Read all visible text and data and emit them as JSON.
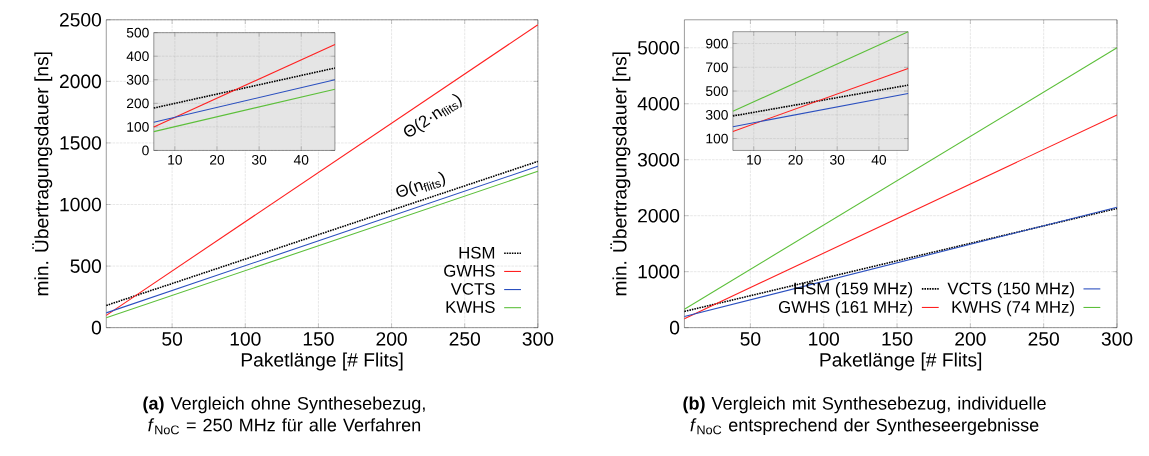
{
  "chart_data": [
    {
      "type": "line",
      "xlabel": "Paketlänge [# Flits]",
      "ylabel": "min. Übertragungsdauer [ns]",
      "xlim": [
        5,
        300
      ],
      "ylim": [
        0,
        2500
      ],
      "xticks": [
        50,
        100,
        150,
        200,
        250,
        300
      ],
      "yticks": [
        0,
        500,
        1000,
        1500,
        2000,
        2500
      ],
      "grid": true,
      "legend": "bottom right",
      "annotations": [
        "Θ(2·n$_{flits}$)",
        "Θ(n$_{flits}$)",
        "**(a)** Vergleich ohne Synthesebezug, *f*$_{NoC}$ = 250 MHz für alle Verfahren"
      ],
      "series": [
        {
          "name": "HSM",
          "color": "#000000",
          "line_style": "dotted",
          "x": [
            5,
            300
          ],
          "values": [
            180,
            1350
          ]
        },
        {
          "name": "GWHS",
          "color": "#ff2020",
          "x": [
            5,
            300
          ],
          "values": [
            100,
            2460
          ]
        },
        {
          "name": "VCTS",
          "color": "#2a4fbf",
          "x": [
            5,
            300
          ],
          "values": [
            120,
            1310
          ]
        },
        {
          "name": "KWHS",
          "color": "#5cbf3a",
          "x": [
            5,
            300
          ],
          "values": [
            80,
            1270
          ]
        }
      ]
    },
    {
      "type": "line",
      "xlim": [
        5,
        48
      ],
      "ylim": [
        0,
        500
      ],
      "xticks": [
        10,
        20,
        30,
        40
      ],
      "yticks": [
        0,
        100,
        200,
        300,
        400,
        500
      ],
      "grid": true,
      "series": [
        {
          "color": "#000000",
          "line_style": "dotted",
          "x": [
            5,
            48
          ],
          "values": [
            180,
            350
          ]
        },
        {
          "color": "#ff2020",
          "x": [
            5,
            48
          ],
          "values": [
            100,
            450
          ]
        },
        {
          "color": "#2a4fbf",
          "x": [
            5,
            48
          ],
          "values": [
            120,
            300
          ]
        },
        {
          "color": "#5cbf3a",
          "x": [
            5,
            48
          ],
          "values": [
            80,
            260
          ]
        }
      ]
    },
    {
      "type": "line",
      "xlabel": "Paketlänge [# Flits]",
      "ylabel": "min. Übertragungsdauer [ns]",
      "xlim": [
        5,
        300
      ],
      "ylim": [
        0,
        5500
      ],
      "xticks": [
        50,
        100,
        150,
        200,
        250,
        300
      ],
      "yticks": [
        0,
        1000,
        2000,
        3000,
        4000,
        5000
      ],
      "grid": true,
      "legend": "bottom right",
      "annotations": [
        "**(b)** Vergleich mit Synthesebezug, individuelle *f*$_{NoC}$ entsprechend der Syntheseergebnisse"
      ],
      "series": [
        {
          "name": "HSM (159 MHz)",
          "color": "#000000",
          "line_style": "dotted",
          "x": [
            5,
            300
          ],
          "values": [
            290,
            2130
          ]
        },
        {
          "name": "GWHS (161 MHz)",
          "color": "#ff2020",
          "x": [
            5,
            300
          ],
          "values": [
            160,
            3800
          ]
        },
        {
          "name": "VCTS (150 MHz)",
          "color": "#2a4fbf",
          "x": [
            5,
            300
          ],
          "values": [
            200,
            2150
          ]
        },
        {
          "name": "KWHS (74 MHz)",
          "color": "#5cbf3a",
          "x": [
            5,
            300
          ],
          "values": [
            330,
            5000
          ]
        }
      ]
    },
    {
      "type": "line",
      "xlim": [
        5,
        47
      ],
      "ylim": [
        0,
        1000
      ],
      "xticks": [
        10,
        20,
        30,
        40
      ],
      "yticks": [
        100,
        300,
        500,
        700,
        900
      ],
      "grid": true,
      "series": [
        {
          "color": "#000000",
          "line_style": "dotted",
          "x": [
            5,
            47
          ],
          "values": [
            290,
            550
          ]
        },
        {
          "color": "#ff2020",
          "x": [
            5,
            47
          ],
          "values": [
            160,
            690
          ]
        },
        {
          "color": "#2a4fbf",
          "x": [
            5,
            47
          ],
          "values": [
            200,
            480
          ]
        },
        {
          "color": "#5cbf3a",
          "x": [
            5,
            47
          ],
          "values": [
            330,
            1000
          ]
        }
      ]
    }
  ]
}
